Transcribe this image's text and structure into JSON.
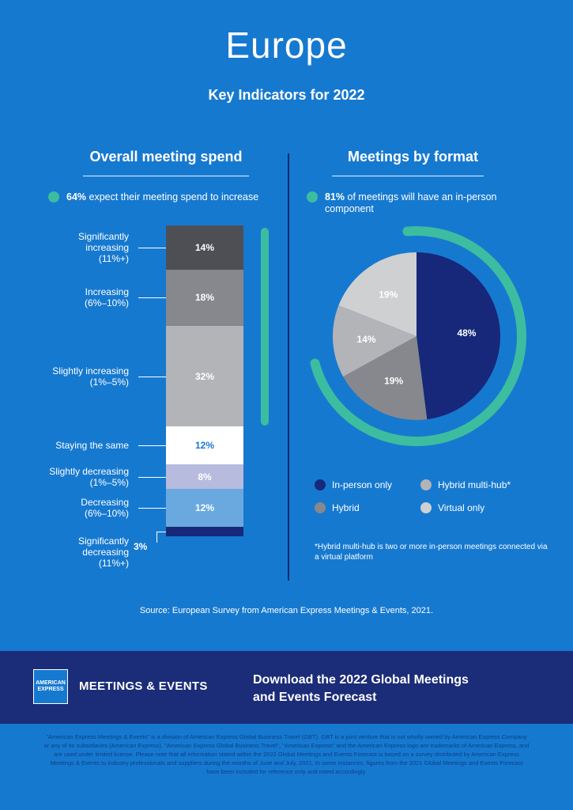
{
  "title": "Europe",
  "subtitle": "Key Indicators for 2022",
  "left": {
    "heading": "Overall meeting spend",
    "stat_bold": "64%",
    "stat_text": " expect their meeting spend to increase"
  },
  "right": {
    "heading": "Meetings by format",
    "stat_bold": "81%",
    "stat_text": " of meetings will have an in-person component"
  },
  "chart_data": [
    {
      "type": "bar",
      "stacked": true,
      "categories": [
        "Significantly increasing (11%+)",
        "Increasing (6%–10%)",
        "Slightly increasing (1%–5%)",
        "Staying the same",
        "Slightly decreasing (1%–5%)",
        "Decreasing (6%–10%)",
        "Significantly decreasing (11%+)"
      ],
      "label_lines": [
        [
          "Significantly",
          "increasing",
          "(11%+)"
        ],
        [
          "Increasing",
          "(6%–10%)"
        ],
        [
          "Slightly increasing",
          "(1%–5%)"
        ],
        [
          "Staying the same"
        ],
        [
          "Slightly decreasing",
          "(1%–5%)"
        ],
        [
          "Decreasing",
          "(6%–10%)"
        ],
        [
          "Significantly",
          "decreasing",
          "(11%+)"
        ]
      ],
      "values": [
        14,
        18,
        32,
        12,
        8,
        12,
        3
      ],
      "value_labels": [
        "14%",
        "18%",
        "32%",
        "12%",
        "8%",
        "12%",
        "3%"
      ],
      "colors": [
        "#4d4f55",
        "#86888d",
        "#b3b4b7",
        "#ffffff",
        "#b7bbdd",
        "#6aa9e0",
        "#17287a"
      ],
      "text_colors": [
        "#ffffff",
        "#ffffff",
        "#ffffff",
        "#1679d0",
        "#ffffff",
        "#ffffff",
        "#ffffff"
      ],
      "bracket_color": "#3dbd9f"
    },
    {
      "type": "pie",
      "labels": [
        "In-person only",
        "Hybrid",
        "Hybrid multi-hub*",
        "Virtual only"
      ],
      "values": [
        48,
        19,
        14,
        19
      ],
      "value_labels": [
        "48%",
        "19%",
        "14%",
        "19%"
      ],
      "colors": [
        "#17287a",
        "#86888d",
        "#b3b4b7",
        "#cfd0d2"
      ],
      "ring_color": "#3dbd9f",
      "legend": [
        {
          "label": "In-person only",
          "color": "#17287a"
        },
        {
          "label": "Hybrid multi-hub*",
          "color": "#b3b4b7"
        },
        {
          "label": "Hybrid",
          "color": "#86888d"
        },
        {
          "label": "Virtual only",
          "color": "#cfd0d2"
        }
      ],
      "footnote": "*Hybrid multi-hub is two or more in-person meetings connected via a virtual platform"
    }
  ],
  "source": "Source: European Survey from American Express Meetings & Events, 2021.",
  "banner": {
    "logo_line1": "AMERICAN",
    "logo_line2": "EXPRESS",
    "brand": "MEETINGS & EVENTS",
    "cta": "Download the 2022 Global Meetings and Events Forecast"
  },
  "legal": "\"American Express Meetings & Events\" is a division of American Express Global Business Travel (GBT). GBT is a joint venture that is not wholly owned by American Express Company or any of its subsidiaries (American Express). \"American Express Global Business Travel\", \"American Express\" and the American Express logo are trademarks of American Express, and are used under limited license. Please note that all information stated within the 2022 Global Meetings and Events Forecast is based on a survey distributed by American Express Meetings & Events to industry professionals and suppliers during the months of June and July, 2021. In some instances, figures from the 2021 Global Meetings and Events Forecast have been included for reference only and noted accordingly."
}
